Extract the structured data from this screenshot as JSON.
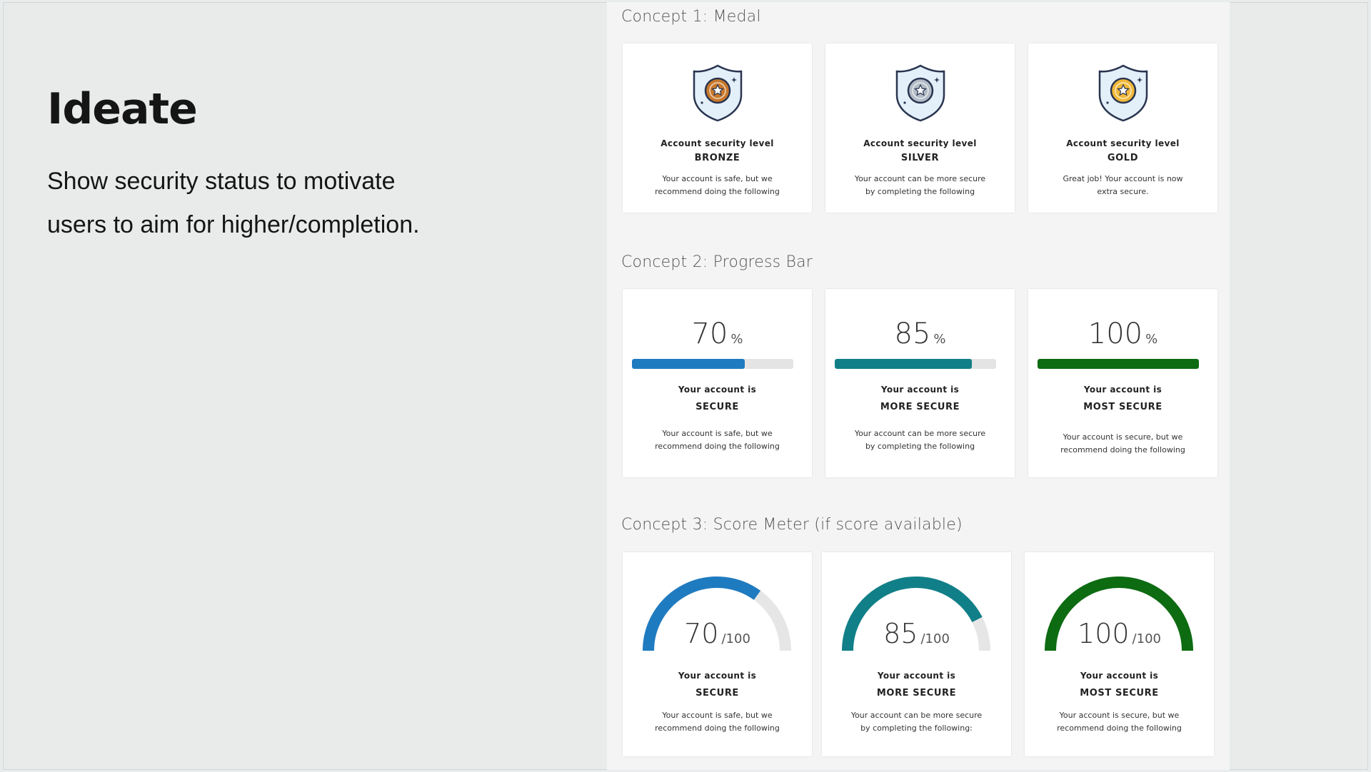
{
  "slide": {
    "heading": "Ideate",
    "description_line1": "Show security status to motivate",
    "description_line2": "users to aim for higher/completion."
  },
  "concept1": {
    "title": "Concept 1: Medal",
    "cards": [
      {
        "line1": "Account security level",
        "level": "BRONZE",
        "note1": "Your account is safe, but we",
        "note2": "recommend doing the following",
        "icon": "bronze-medal-shield-icon",
        "color": "#c8782c"
      },
      {
        "line1": "Account security level",
        "level": "SILVER",
        "note1": "Your account can be more secure",
        "note2": "by completing the following",
        "icon": "silver-medal-shield-icon",
        "color": "#b3bcc6"
      },
      {
        "line1": "Account security level",
        "level": "GOLD",
        "note1": "Great job! Your account is now",
        "note2": "extra secure.",
        "icon": "gold-medal-shield-icon",
        "color": "#f0b93a"
      }
    ]
  },
  "concept2": {
    "title": "Concept 2: Progress Bar",
    "cards": [
      {
        "value": "70",
        "unit": "%",
        "progress": 0.7,
        "color": "#1f7bc0",
        "line1": "Your account is",
        "level": "SECURE",
        "note1": "Your account is safe, but we",
        "note2": "recommend doing the following"
      },
      {
        "value": "85",
        "unit": "%",
        "progress": 0.85,
        "color": "#117f87",
        "line1": "Your account is",
        "level": "MORE SECURE",
        "note1": "Your account can be more secure",
        "note2": "by completing the following"
      },
      {
        "value": "100",
        "unit": "%",
        "progress": 1.0,
        "color": "#0d6b12",
        "line1": "Your account is",
        "level": "MOST SECURE",
        "note1": "Your account is secure, but we",
        "note2": "recommend doing the following"
      }
    ]
  },
  "concept3": {
    "title": "Concept 3: Score Meter  (if score available)",
    "cards": [
      {
        "value": "70",
        "unit": "/100",
        "score": 70,
        "color": "#1f7bc0",
        "line1": "Your account is",
        "level": "SECURE",
        "note1": "Your account is safe, but we",
        "note2": "recommend doing the following"
      },
      {
        "value": "85",
        "unit": "/100",
        "score": 85,
        "color": "#117f87",
        "line1": "Your account is",
        "level": "MORE SECURE",
        "note1": "Your account can be more secure",
        "note2": "by completing the following:"
      },
      {
        "value": "100",
        "unit": "/100",
        "score": 100,
        "color": "#0d6b12",
        "line1": "Your account is",
        "level": "MOST SECURE",
        "note1": "Your account is secure, but we",
        "note2": "recommend doing the following"
      }
    ]
  },
  "colors": {
    "gauge_track": "#e6e6e6",
    "bar_track": "#e4e4e4",
    "shield_outline": "#2a3550",
    "shield_fill": "#e3f0fa"
  }
}
